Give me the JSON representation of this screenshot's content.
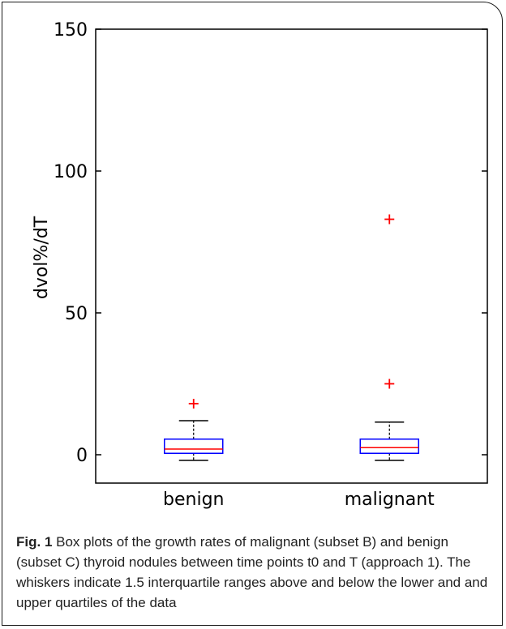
{
  "chart_data": {
    "type": "box",
    "ylabel": "dvol%/dT",
    "ylim": [
      -10,
      150
    ],
    "yticks": [
      "0",
      "50",
      "100",
      "150"
    ],
    "categories": [
      "benign",
      "malignant"
    ],
    "boxes": [
      {
        "category": "benign",
        "whisker_low": -2,
        "q1": 0.5,
        "median": 2,
        "q3": 5.5,
        "whisker_high": 12,
        "outliers": [
          18
        ]
      },
      {
        "category": "malignant",
        "whisker_low": -2,
        "q1": 0.5,
        "median": 2.5,
        "q3": 5.5,
        "whisker_high": 11.5,
        "outliers": [
          25,
          83
        ]
      }
    ],
    "colors": {
      "box": "#0000ff",
      "median": "#ff0000",
      "outlier": "#ff0000",
      "whisker": "#000000",
      "axis": "#000000"
    }
  },
  "caption": {
    "lead": "Fig. 1",
    "text": " Box plots of the growth rates of malignant (subset B) and benign (subset C) thyroid nodules between time points t0 and T (approach 1). The whiskers indicate 1.5 interquartile ranges above and below the lower and and upper quartiles of the data"
  }
}
